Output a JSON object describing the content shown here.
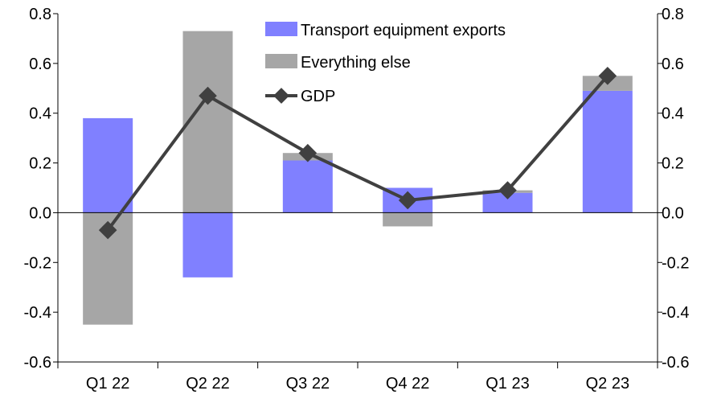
{
  "chart_data": {
    "type": "bar",
    "title": "",
    "xlabel": "",
    "ylabel": "",
    "ylim": [
      -0.6,
      0.8
    ],
    "y2lim": [
      -0.6,
      0.8
    ],
    "yticks": [
      "0.8",
      "0.6",
      "0.4",
      "0.2",
      "0.0",
      "-0.2",
      "-0.4",
      "-0.6"
    ],
    "ytick_values": [
      0.8,
      0.6,
      0.4,
      0.2,
      0.0,
      -0.2,
      -0.4,
      -0.6
    ],
    "categories": [
      "Q1 22",
      "Q2 22",
      "Q3 22",
      "Q4 22",
      "Q1 23",
      "Q2 23"
    ],
    "stacked": true,
    "grid": false,
    "legend_position": "top-center",
    "series": [
      {
        "name": "Transport equipment exports",
        "kind": "bar",
        "color": "#8080FF",
        "values": [
          0.38,
          -0.26,
          0.21,
          0.1,
          0.08,
          0.49
        ]
      },
      {
        "name": "Everything else",
        "kind": "bar",
        "color": "#A6A6A6",
        "values": [
          -0.45,
          0.73,
          0.03,
          -0.055,
          0.01,
          0.06
        ]
      },
      {
        "name": "GDP",
        "kind": "line",
        "color": "#404040",
        "values": [
          -0.07,
          0.47,
          0.24,
          0.05,
          0.09,
          0.55
        ]
      }
    ]
  }
}
